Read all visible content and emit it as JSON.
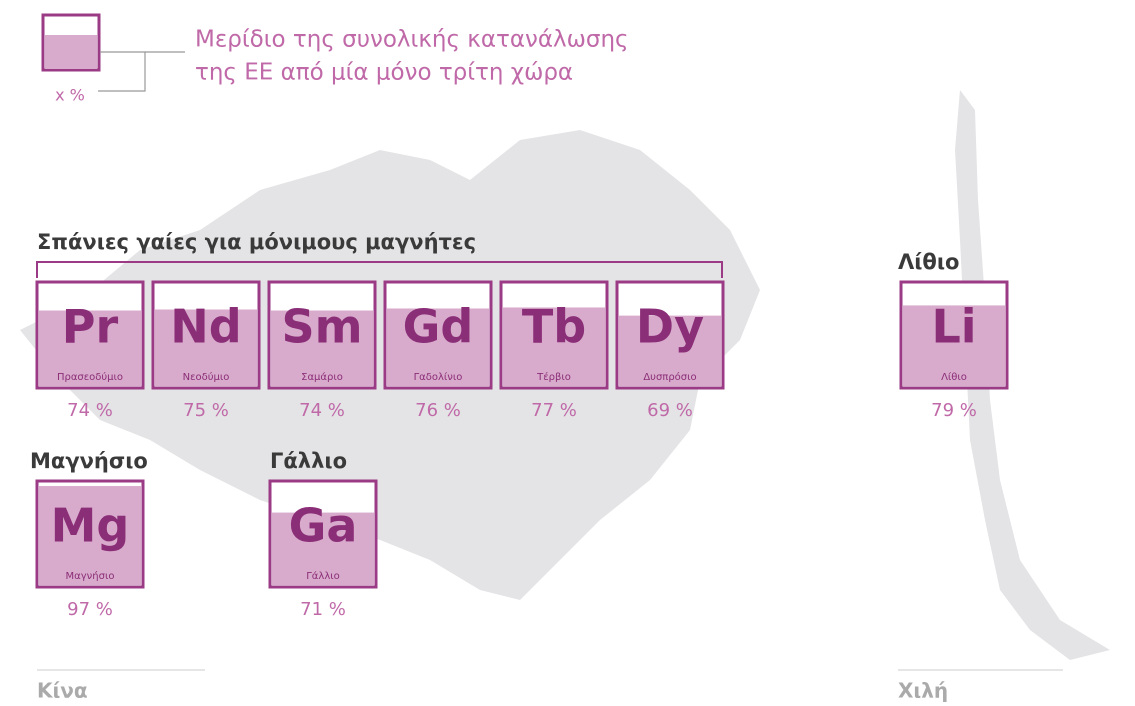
{
  "legend": {
    "lines": [
      "Μερίδιο της συνολικής κατανάλωσης",
      "της ΕΕ από μία μόνο τρίτη χώρα"
    ],
    "sample_label": "x %"
  },
  "groups": [
    {
      "title": "Σπάνιες γαίες για μόνιμους μαγνήτες",
      "tiles": [
        {
          "symbol": "Pr",
          "name": "Πρασεοδύμιο",
          "value": 74,
          "value_label": "74 %"
        },
        {
          "symbol": "Nd",
          "name": "Νεοδύμιο",
          "value": 75,
          "value_label": "75 %"
        },
        {
          "symbol": "Sm",
          "name": "Σαμάριο",
          "value": 74,
          "value_label": "74 %"
        },
        {
          "symbol": "Gd",
          "name": "Γαδολίνιο",
          "value": 76,
          "value_label": "76 %"
        },
        {
          "symbol": "Tb",
          "name": "Τέρβιο",
          "value": 77,
          "value_label": "77 %"
        },
        {
          "symbol": "Dy",
          "name": "Δυσπρόσιο",
          "value": 69,
          "value_label": "69 %"
        }
      ]
    },
    {
      "title": "Μαγνήσιο",
      "tiles": [
        {
          "symbol": "Mg",
          "name": "Μαγνήσιο",
          "value": 97,
          "value_label": "97 %"
        }
      ]
    },
    {
      "title": "Γάλλιο",
      "tiles": [
        {
          "symbol": "Ga",
          "name": "Γάλλιο",
          "value": 71,
          "value_label": "71 %"
        }
      ]
    },
    {
      "title": "Λίθιο",
      "tiles": [
        {
          "symbol": "Li",
          "name": "Λίθιο",
          "value": 79,
          "value_label": "79 %"
        }
      ]
    }
  ],
  "countries": [
    "Κίνα",
    "Χιλή"
  ]
}
